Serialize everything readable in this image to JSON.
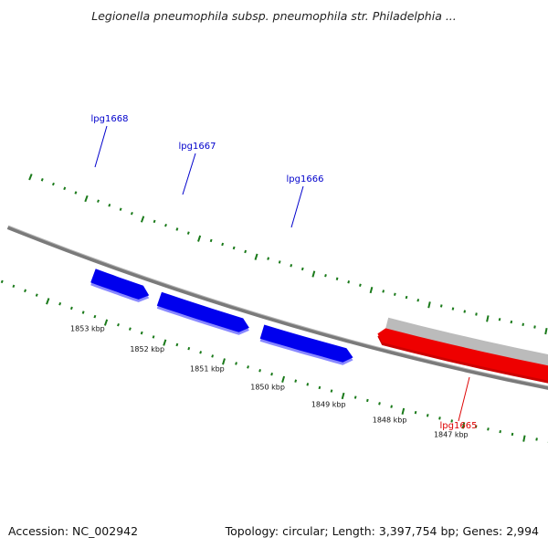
{
  "title": "Legionella pneumophila subsp. pneumophila str. Philadelphia ...",
  "footer": {
    "accession": "Accession: NC_002942",
    "summary": "Topology: circular; Length: 3,397,754 bp; Genes: 2,994"
  },
  "colors": {
    "backbone": "#7a7a7a",
    "ticks": "#1a7a1a",
    "forward_gene": "#0000ee",
    "reverse_gene": "#ee0000",
    "gene_shadow": "#bbbbbb",
    "forward_label": "#0000cc",
    "reverse_label": "#dd0000"
  },
  "scale": {
    "unit": "kbp",
    "labels": [
      "1853 kbp",
      "1852 kbp",
      "1851 kbp",
      "1850 kbp",
      "1849 kbp",
      "1848 kbp",
      "1847 kbp"
    ]
  },
  "genes": [
    {
      "name": "lpg1668",
      "strand": "forward"
    },
    {
      "name": "lpg1667",
      "strand": "forward"
    },
    {
      "name": "lpg1666",
      "strand": "forward"
    },
    {
      "name": "lpg1665",
      "strand": "reverse"
    }
  ]
}
